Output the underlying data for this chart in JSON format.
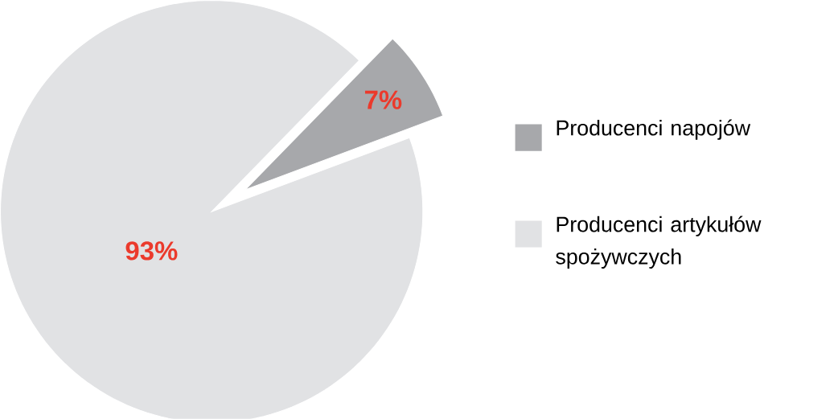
{
  "chart_data": {
    "type": "pie",
    "categories": [
      "Producenci napojów",
      "Producenci artykułów spożywczych"
    ],
    "values": [
      7,
      93
    ],
    "colors": [
      "#a7a8ab",
      "#e1e2e4"
    ],
    "value_labels": [
      "7%",
      "93%"
    ],
    "legend": "right"
  }
}
